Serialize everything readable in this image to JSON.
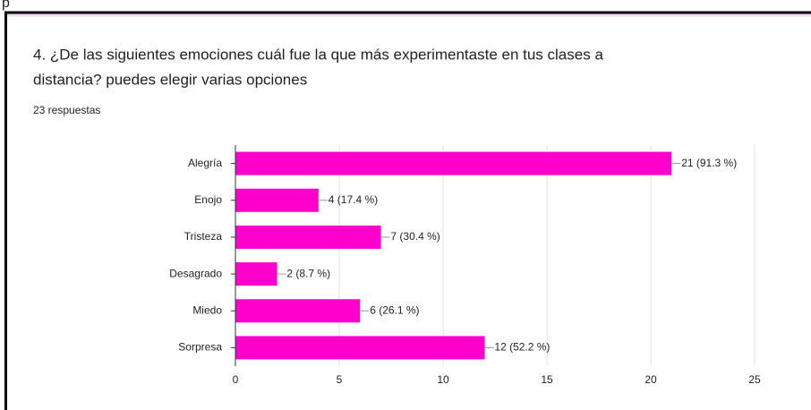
{
  "page_fragment": "p",
  "chart_data": {
    "type": "bar",
    "orientation": "horizontal",
    "title_lines": [
      "4. ¿De las siguientes emociones cuál fue la que más experimentaste en tus clases a",
      "distancia? puedes elegir varias opciones"
    ],
    "subtitle": "23 respuestas",
    "categories": [
      "Alegría",
      "Enojo",
      "Tristeza",
      "Desagrado",
      "Miedo",
      "Sorpresa"
    ],
    "values": [
      21,
      4,
      7,
      2,
      6,
      12
    ],
    "value_labels": [
      "21 (91.3 %)",
      "4 (17.4 %)",
      "7 (30.4 %)",
      "2 (8.7 %)",
      "6 (26.1 %)",
      "12 (52.2 %)"
    ],
    "color": "#ff00cc",
    "xlim": [
      0,
      25
    ],
    "xticks": [
      0,
      5,
      10,
      15,
      20,
      25
    ],
    "grid": true
  }
}
